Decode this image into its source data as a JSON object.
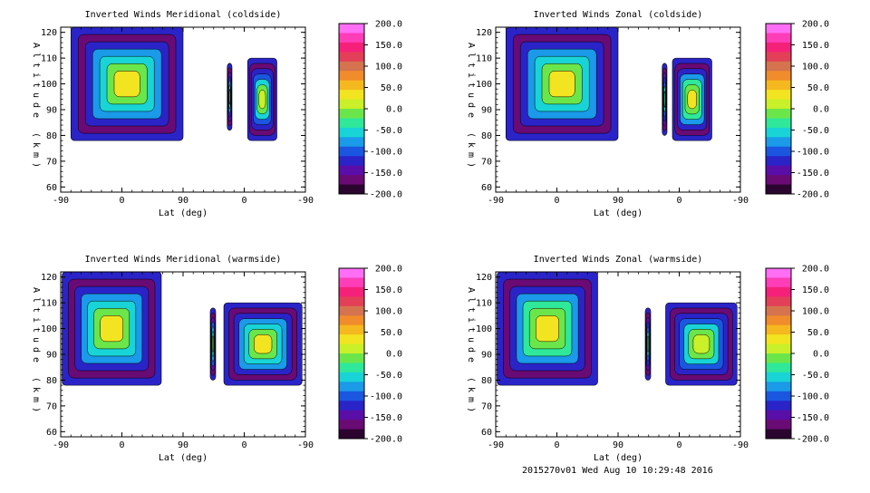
{
  "footer": "2015270v01 Wed Aug 10 10:29:48 2016",
  "chart_data": [
    {
      "type": "heatmap",
      "title": "Inverted Winds Meridional (coldside)",
      "xlabel": "Lat (deg)",
      "ylabel": "Altitude (km)",
      "x_ticks": [
        "-90",
        "0",
        "90",
        "0",
        "-90"
      ],
      "y_ticks": [
        "60",
        "70",
        "80",
        "90",
        "100",
        "110",
        "120"
      ],
      "ylim": [
        58,
        122
      ],
      "colorbar_ticks": [
        "200.0",
        "150.0",
        "100.0",
        "50.0",
        "0.0",
        "-50.0",
        "-100.0",
        "-150.0",
        "-200.0"
      ],
      "colorbar_range": [
        -200,
        200
      ],
      "regions": [
        {
          "x": [
            -75,
            90
          ],
          "y": [
            78,
            122
          ],
          "value": 30
        },
        {
          "x": [
            155,
            162
          ],
          "y": [
            82,
            108
          ],
          "value": -30
        },
        {
          "x": [
            185,
            228
          ],
          "y": [
            78,
            110
          ],
          "value": 20
        }
      ]
    },
    {
      "type": "heatmap",
      "title": "Inverted Winds Zonal (coldside)",
      "xlabel": "Lat (deg)",
      "ylabel": "Altitude (km)",
      "x_ticks": [
        "-90",
        "0",
        "90",
        "0",
        "-90"
      ],
      "y_ticks": [
        "60",
        "70",
        "80",
        "90",
        "100",
        "110",
        "120"
      ],
      "ylim": [
        58,
        122
      ],
      "colorbar_ticks": [
        "200.0",
        "150.0",
        "100.0",
        "50.0",
        "0.0",
        "-50.0",
        "-100.0",
        "-150.0",
        "-200.0"
      ],
      "colorbar_range": [
        -200,
        200
      ],
      "regions": [
        {
          "x": [
            -75,
            90
          ],
          "y": [
            78,
            122
          ],
          "value": 30
        },
        {
          "x": [
            155,
            162
          ],
          "y": [
            80,
            108
          ],
          "value": -40
        },
        {
          "x": [
            170,
            228
          ],
          "y": [
            78,
            110
          ],
          "value": 40
        }
      ]
    },
    {
      "type": "heatmap",
      "title": "Inverted Winds Meridional (warmside)",
      "xlabel": "Lat (deg)",
      "ylabel": "Altitude (km)",
      "x_ticks": [
        "-90",
        "0",
        "90",
        "0",
        "-90"
      ],
      "y_ticks": [
        "60",
        "70",
        "80",
        "90",
        "100",
        "110",
        "120"
      ],
      "ylim": [
        58,
        122
      ],
      "colorbar_ticks": [
        "200.0",
        "150.0",
        "100.0",
        "50.0",
        "0.0",
        "-50.0",
        "-100.0",
        "-150.0",
        "-200.0"
      ],
      "colorbar_range": [
        -200,
        200
      ],
      "regions": [
        {
          "x": [
            -88,
            58
          ],
          "y": [
            78,
            122
          ],
          "value": 30
        },
        {
          "x": [
            130,
            138
          ],
          "y": [
            80,
            108
          ],
          "value": -20
        },
        {
          "x": [
            150,
            265
          ],
          "y": [
            78,
            110
          ],
          "value": 30
        }
      ]
    },
    {
      "type": "heatmap",
      "title": "Inverted Winds Zonal (warmside)",
      "xlabel": "Lat (deg)",
      "ylabel": "Altitude (km)",
      "x_ticks": [
        "-90",
        "0",
        "90",
        "0",
        "-90"
      ],
      "y_ticks": [
        "60",
        "70",
        "80",
        "90",
        "100",
        "110",
        "120"
      ],
      "ylim": [
        58,
        122
      ],
      "colorbar_ticks": [
        "200.0",
        "150.0",
        "100.0",
        "50.0",
        "0.0",
        "-50.0",
        "-100.0",
        "-150.0",
        "-200.0"
      ],
      "colorbar_range": [
        -200,
        200
      ],
      "regions": [
        {
          "x": [
            -88,
            60
          ],
          "y": [
            78,
            122
          ],
          "value": 40
        },
        {
          "x": [
            130,
            138
          ],
          "y": [
            80,
            108
          ],
          "value": -40
        },
        {
          "x": [
            160,
            265
          ],
          "y": [
            78,
            110
          ],
          "value": 20
        }
      ]
    }
  ]
}
